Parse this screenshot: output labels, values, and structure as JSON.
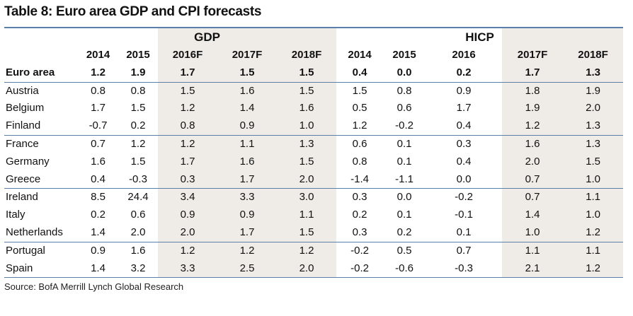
{
  "title": "Table 8: Euro area GDP and CPI forecasts",
  "groups": {
    "gdp": "GDP",
    "hicp": "HICP"
  },
  "years": [
    "2014",
    "2015",
    "2016F",
    "2017F",
    "2018F",
    "2014",
    "2015",
    "2016",
    "2017F",
    "2018F"
  ],
  "rows": [
    {
      "name": "Euro area",
      "values": [
        "1.2",
        "1.9",
        "1.7",
        "1.5",
        "1.5",
        "0.4",
        "0.0",
        "0.2",
        "1.7",
        "1.3"
      ]
    },
    {
      "name": "Austria",
      "values": [
        "0.8",
        "0.8",
        "1.5",
        "1.6",
        "1.5",
        "1.5",
        "0.8",
        "0.9",
        "1.8",
        "1.9"
      ]
    },
    {
      "name": "Belgium",
      "values": [
        "1.7",
        "1.5",
        "1.2",
        "1.4",
        "1.6",
        "0.5",
        "0.6",
        "1.7",
        "1.9",
        "2.0"
      ]
    },
    {
      "name": "Finland",
      "values": [
        "-0.7",
        "0.2",
        "0.8",
        "0.9",
        "1.0",
        "1.2",
        "-0.2",
        "0.4",
        "1.2",
        "1.3"
      ]
    },
    {
      "name": "France",
      "values": [
        "0.7",
        "1.2",
        "1.2",
        "1.1",
        "1.3",
        "0.6",
        "0.1",
        "0.3",
        "1.6",
        "1.3"
      ]
    },
    {
      "name": "Germany",
      "values": [
        "1.6",
        "1.5",
        "1.7",
        "1.6",
        "1.5",
        "0.8",
        "0.1",
        "0.4",
        "2.0",
        "1.5"
      ]
    },
    {
      "name": "Greece",
      "values": [
        "0.4",
        "-0.3",
        "0.3",
        "1.7",
        "2.0",
        "-1.4",
        "-1.1",
        "0.0",
        "0.7",
        "1.0"
      ]
    },
    {
      "name": "Ireland",
      "values": [
        "8.5",
        "24.4",
        "3.4",
        "3.3",
        "3.0",
        "0.3",
        "0.0",
        "-0.2",
        "0.7",
        "1.1"
      ]
    },
    {
      "name": "Italy",
      "values": [
        "0.2",
        "0.6",
        "0.9",
        "0.9",
        "1.1",
        "0.2",
        "0.1",
        "-0.1",
        "1.4",
        "1.0"
      ]
    },
    {
      "name": "Netherlands",
      "values": [
        "1.4",
        "2.0",
        "2.0",
        "1.7",
        "1.5",
        "0.3",
        "0.2",
        "0.1",
        "1.0",
        "1.2"
      ]
    },
    {
      "name": "Portugal",
      "values": [
        "0.9",
        "1.6",
        "1.2",
        "1.2",
        "1.2",
        "-0.2",
        "0.5",
        "0.7",
        "1.1",
        "1.1"
      ]
    },
    {
      "name": "Spain",
      "values": [
        "1.4",
        "3.2",
        "3.3",
        "2.5",
        "2.0",
        "-0.2",
        "-0.6",
        "-0.3",
        "2.1",
        "1.2"
      ]
    }
  ],
  "source": "Source: BofA Merrill Lynch Global Research",
  "colors": {
    "rule": "#5a7fa8",
    "shade": "#efece7"
  }
}
